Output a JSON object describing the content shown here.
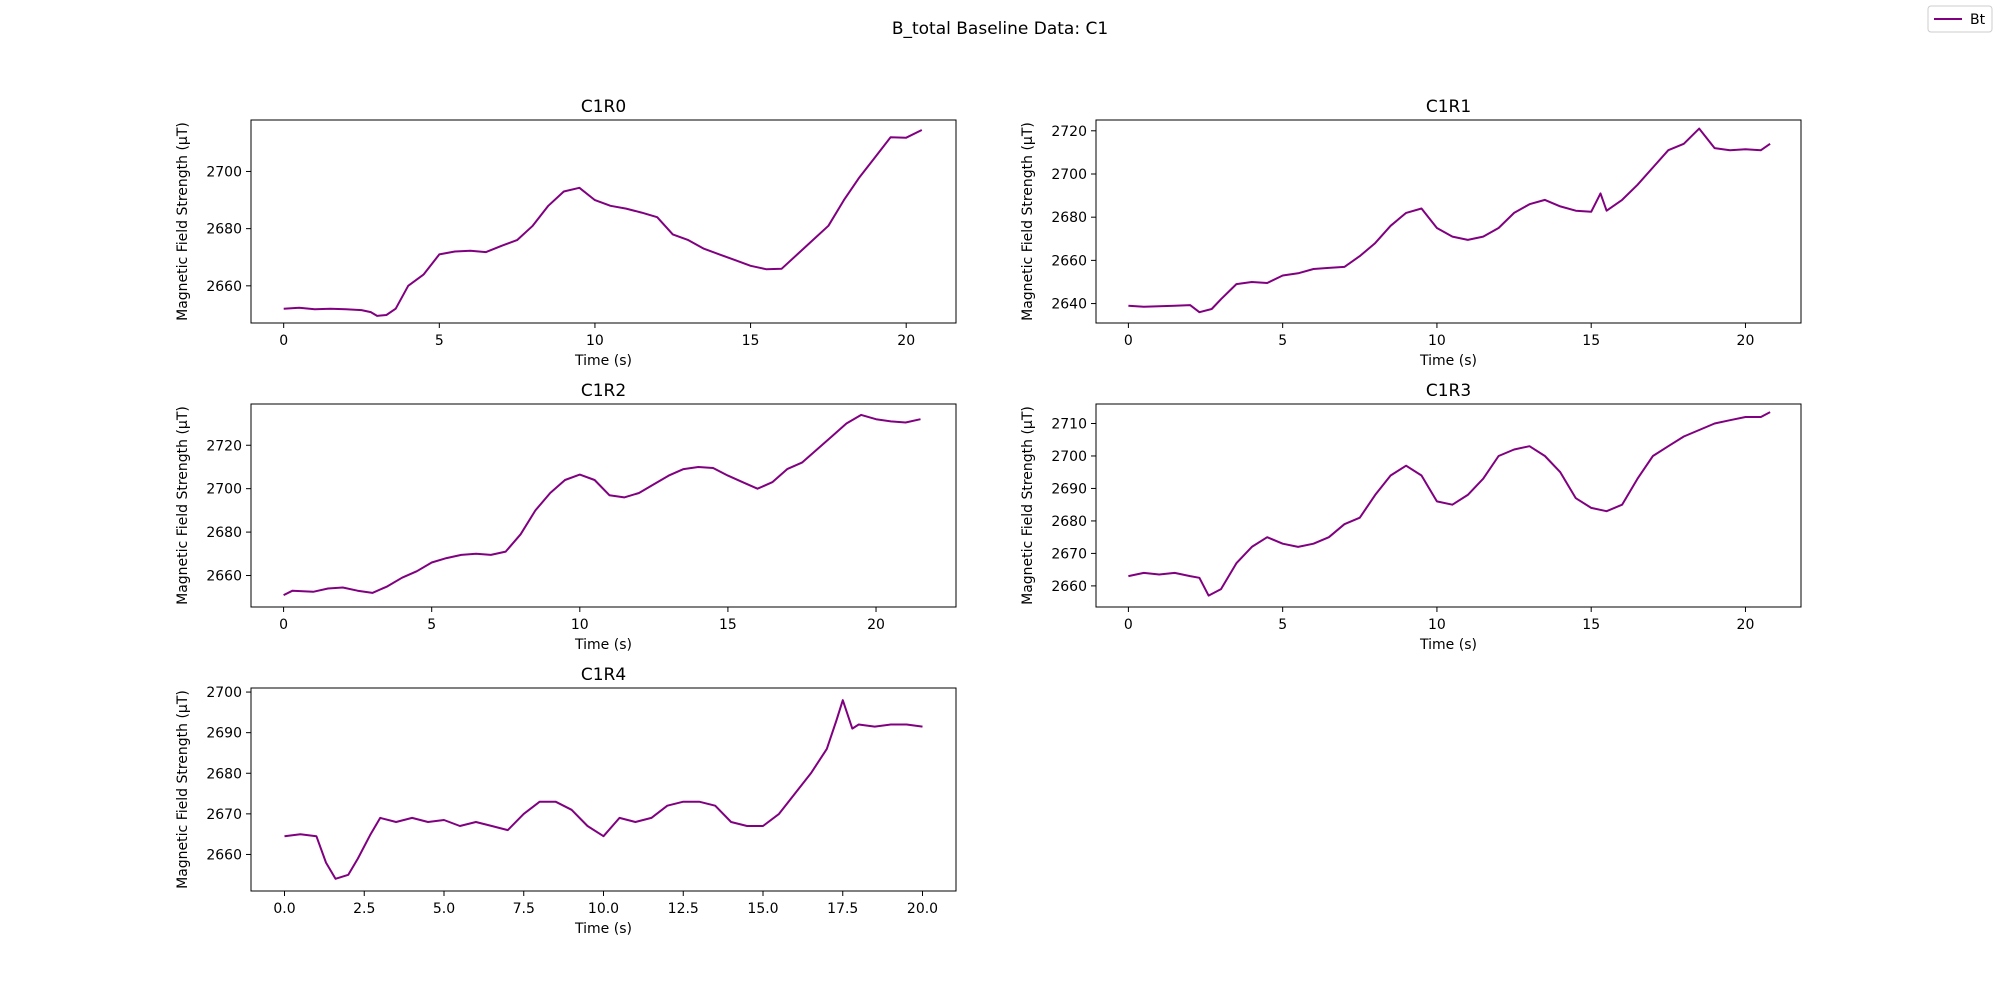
{
  "figure": {
    "title": "B_total Baseline Data: C1",
    "legend_label": "Bt",
    "line_color": "#800080"
  },
  "chart_data": [
    {
      "type": "line",
      "title": "C1R0",
      "xlabel": "Time (s)",
      "ylabel": "Magnetic Field Strength (μT)",
      "xlim": [
        -1.05,
        21.6
      ],
      "ylim": [
        2647,
        2718
      ],
      "xticks": [
        0,
        5,
        10,
        15,
        20
      ],
      "xtick_labels": [
        "0",
        "5",
        "10",
        "15",
        "20"
      ],
      "yticks": [
        2660,
        2680,
        2700
      ],
      "ytick_labels": [
        "2660",
        "2680",
        "2700"
      ],
      "series": [
        {
          "name": "Bt",
          "x": [
            0,
            0.5,
            1,
            1.5,
            2,
            2.5,
            2.8,
            3,
            3.3,
            3.6,
            4,
            4.5,
            5,
            5.5,
            6,
            6.5,
            7,
            7.5,
            8,
            8.5,
            9,
            9.5,
            10,
            10.5,
            11,
            11.5,
            12,
            12.5,
            13,
            13.5,
            14,
            14.5,
            15,
            15.5,
            16,
            16.5,
            17,
            17.5,
            18,
            18.5,
            19,
            19.5,
            20,
            20.5
          ],
          "y": [
            2652,
            2652.3,
            2651.8,
            2652,
            2651.8,
            2651.5,
            2650.8,
            2649.5,
            2649.8,
            2652,
            2660,
            2664,
            2671,
            2672,
            2672.3,
            2671.8,
            2674,
            2676,
            2681,
            2688,
            2693,
            2694.3,
            2690,
            2688,
            2687,
            2685.6,
            2684,
            2678,
            2676,
            2673,
            2671,
            2669,
            2667,
            2665.8,
            2666,
            2671,
            2676,
            2681,
            2690,
            2698,
            2705,
            2712,
            2711.8,
            2714.5
          ]
        }
      ]
    },
    {
      "type": "line",
      "title": "C1R1",
      "xlabel": "Time (s)",
      "ylabel": "Magnetic Field Strength (μT)",
      "xlim": [
        -1.05,
        21.8
      ],
      "ylim": [
        2631,
        2725
      ],
      "xticks": [
        0,
        5,
        10,
        15,
        20
      ],
      "xtick_labels": [
        "0",
        "5",
        "10",
        "15",
        "20"
      ],
      "yticks": [
        2640,
        2660,
        2680,
        2700,
        2720
      ],
      "ytick_labels": [
        "2640",
        "2660",
        "2680",
        "2700",
        "2720"
      ],
      "series": [
        {
          "name": "Bt",
          "x": [
            0,
            0.5,
            1,
            1.5,
            2,
            2.3,
            2.7,
            3,
            3.5,
            4,
            4.5,
            5,
            5.5,
            6,
            6.5,
            7,
            7.5,
            8,
            8.5,
            9,
            9.5,
            10,
            10.5,
            11,
            11.5,
            12,
            12.5,
            13,
            13.5,
            14,
            14.5,
            15,
            15.3,
            15.5,
            16,
            16.5,
            17,
            17.5,
            18,
            18.5,
            19,
            19.5,
            20,
            20.5,
            20.8
          ],
          "y": [
            2639,
            2638.5,
            2638.8,
            2639,
            2639.3,
            2636,
            2637.5,
            2642,
            2649,
            2650,
            2649.5,
            2653,
            2654,
            2656,
            2656.5,
            2657,
            2662,
            2668,
            2676,
            2682,
            2684,
            2675,
            2671,
            2669.5,
            2671,
            2675,
            2682,
            2686,
            2688,
            2685,
            2683,
            2682.5,
            2691,
            2683,
            2688,
            2695,
            2703,
            2711,
            2714,
            2721,
            2712,
            2711,
            2711.5,
            2711,
            2714
          ]
        }
      ]
    },
    {
      "type": "line",
      "title": "C1R2",
      "xlabel": "Time (s)",
      "ylabel": "Magnetic Field Strength (μT)",
      "xlim": [
        -1.1,
        22.7
      ],
      "ylim": [
        2645.5,
        2739
      ],
      "xticks": [
        0,
        5,
        10,
        15,
        20
      ],
      "xtick_labels": [
        "0",
        "5",
        "10",
        "15",
        "20"
      ],
      "yticks": [
        2660,
        2680,
        2700,
        2720
      ],
      "ytick_labels": [
        "2660",
        "2680",
        "2700",
        "2720"
      ],
      "series": [
        {
          "name": "Bt",
          "x": [
            0,
            0.3,
            1,
            1.5,
            2,
            2.5,
            3,
            3.5,
            4,
            4.5,
            5,
            5.5,
            6,
            6.5,
            7,
            7.5,
            8,
            8.5,
            9,
            9.5,
            10,
            10.5,
            11,
            11.5,
            12,
            12.5,
            13,
            13.5,
            14,
            14.5,
            15,
            15.5,
            16,
            16.5,
            17,
            17.5,
            18,
            18.5,
            19,
            19.5,
            20,
            20.5,
            21,
            21.5
          ],
          "y": [
            2651,
            2653,
            2652.5,
            2654,
            2654.5,
            2653,
            2652,
            2655,
            2659,
            2662,
            2666,
            2668,
            2669.5,
            2670,
            2669.5,
            2671,
            2679,
            2690,
            2698,
            2704,
            2706.5,
            2704,
            2697,
            2696,
            2698,
            2702,
            2706,
            2709,
            2710,
            2709.5,
            2706,
            2703,
            2700,
            2703,
            2709,
            2712,
            2718,
            2724,
            2730,
            2734,
            2732,
            2731,
            2730.5,
            2732
          ]
        }
      ]
    },
    {
      "type": "line",
      "title": "C1R3",
      "xlabel": "Time (s)",
      "ylabel": "Magnetic Field Strength (μT)",
      "xlim": [
        -1.05,
        21.8
      ],
      "ylim": [
        2653.5,
        2716
      ],
      "xticks": [
        0,
        5,
        10,
        15,
        20
      ],
      "xtick_labels": [
        "0",
        "5",
        "10",
        "15",
        "20"
      ],
      "yticks": [
        2660,
        2670,
        2680,
        2690,
        2700,
        2710
      ],
      "ytick_labels": [
        "2660",
        "2670",
        "2680",
        "2690",
        "2700",
        "2710"
      ],
      "series": [
        {
          "name": "Bt",
          "x": [
            0,
            0.5,
            1,
            1.5,
            2,
            2.3,
            2.6,
            3,
            3.5,
            4,
            4.5,
            5,
            5.5,
            6,
            6.5,
            7,
            7.5,
            8,
            8.5,
            9,
            9.5,
            10,
            10.5,
            11,
            11.5,
            12,
            12.5,
            13,
            13.5,
            14,
            14.5,
            15,
            15.5,
            16,
            16.5,
            17,
            17.5,
            18,
            18.5,
            19,
            19.5,
            20,
            20.5,
            20.8
          ],
          "y": [
            2663,
            2664,
            2663.5,
            2664,
            2663,
            2662.5,
            2657,
            2659,
            2667,
            2672,
            2675,
            2673,
            2672,
            2673,
            2675,
            2679,
            2681,
            2688,
            2694,
            2697,
            2694,
            2686,
            2685,
            2688,
            2693,
            2700,
            2702,
            2703,
            2700,
            2695,
            2687,
            2684,
            2683,
            2685,
            2693,
            2700,
            2703,
            2706,
            2708,
            2710,
            2711,
            2712,
            2712,
            2713.5
          ]
        }
      ]
    },
    {
      "type": "line",
      "title": "C1R4",
      "xlabel": "Time (s)",
      "ylabel": "Magnetic Field Strength (μT)",
      "xlim": [
        -1.05,
        21.05
      ],
      "ylim": [
        2651,
        2701
      ],
      "xticks": [
        0,
        2.5,
        5,
        7.5,
        10,
        12.5,
        15,
        17.5,
        20
      ],
      "xtick_labels": [
        "0.0",
        "2.5",
        "5.0",
        "7.5",
        "10.0",
        "12.5",
        "15.0",
        "17.5",
        "20.0"
      ],
      "yticks": [
        2660,
        2670,
        2680,
        2690,
        2700
      ],
      "ytick_labels": [
        "2660",
        "2670",
        "2680",
        "2690",
        "2700"
      ],
      "series": [
        {
          "name": "Bt",
          "x": [
            0,
            0.5,
            1,
            1.3,
            1.6,
            2,
            2.3,
            2.7,
            3,
            3.5,
            4,
            4.5,
            5,
            5.5,
            6,
            6.5,
            7,
            7.5,
            8,
            8.5,
            9,
            9.5,
            10,
            10.5,
            11,
            11.5,
            12,
            12.5,
            13,
            13.5,
            14,
            14.5,
            15,
            15.5,
            16,
            16.5,
            17,
            17.3,
            17.5,
            17.8,
            18,
            18.5,
            19,
            19.5,
            20
          ],
          "y": [
            2664.5,
            2665,
            2664.5,
            2658,
            2654,
            2655,
            2659,
            2665,
            2669,
            2668,
            2669,
            2668,
            2668.5,
            2667,
            2668,
            2667,
            2666,
            2670,
            2673,
            2673,
            2671,
            2667,
            2664.5,
            2669,
            2668,
            2669,
            2672,
            2673,
            2673,
            2672,
            2668,
            2667,
            2667,
            2670,
            2675,
            2680,
            2686,
            2693,
            2698,
            2691,
            2692,
            2691.5,
            2692,
            2692,
            2691.5
          ]
        }
      ]
    }
  ]
}
